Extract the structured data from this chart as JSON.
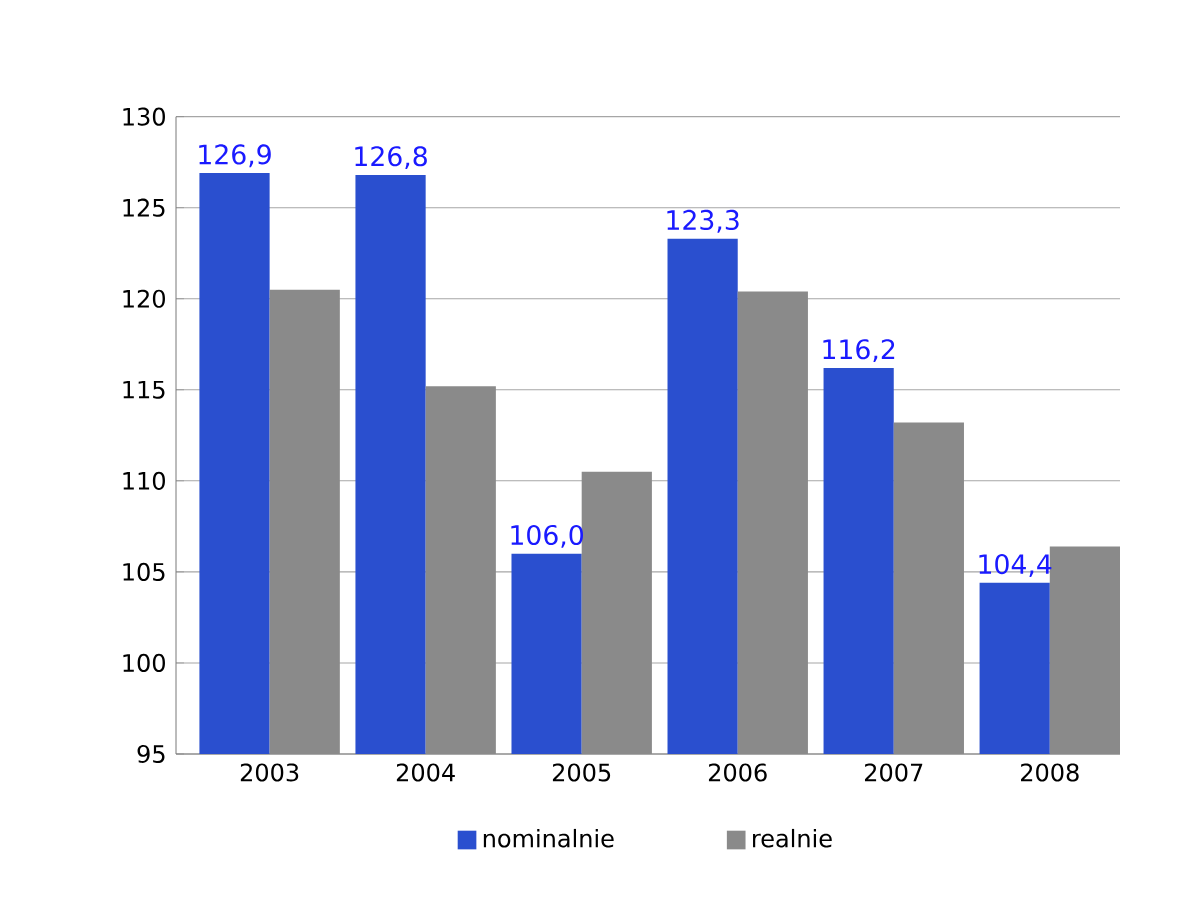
{
  "chart_data": {
    "type": "bar",
    "categories": [
      "2003",
      "2004",
      "2005",
      "2006",
      "2007",
      "2008"
    ],
    "series": [
      {
        "name": "nominalnie",
        "color": "#2a4fcf",
        "values": [
          126.9,
          126.8,
          106.0,
          123.3,
          116.2,
          104.4
        ],
        "value_labels": [
          "126,9",
          "126,8",
          "106,0",
          "123,3",
          "116,2",
          "104,4"
        ]
      },
      {
        "name": "realnie",
        "color": "#8a8a8a",
        "values": [
          120.5,
          115.2,
          110.5,
          120.4,
          113.2,
          106.4
        ]
      }
    ],
    "ylim": [
      95,
      130
    ],
    "yticks": [
      95,
      100,
      105,
      110,
      115,
      120,
      125,
      130
    ],
    "grid": "y",
    "legend": "bottom"
  }
}
